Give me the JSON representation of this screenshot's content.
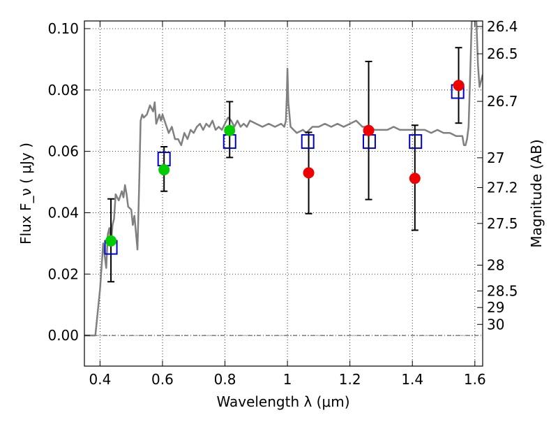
{
  "chart_data": {
    "type": "scatter",
    "title": "",
    "xlabel": "Wavelength  λ (μm)",
    "ylabel": "Flux  F_ν  ( μJy )",
    "ylabel_right": "Magnitude (AB)",
    "xlim": [
      0.35,
      1.625
    ],
    "ylim": [
      -0.01,
      0.1025
    ],
    "x_ticks": [
      0.4,
      0.6,
      0.8,
      1.0,
      1.2,
      1.4,
      1.6
    ],
    "x_tick_labels": [
      "0.4",
      "0.6",
      "0.8",
      "1",
      "1.2",
      "1.4",
      "1.6"
    ],
    "y_ticks": [
      0.0,
      0.02,
      0.04,
      0.06,
      0.08,
      0.1
    ],
    "y_tick_labels": [
      "0.00",
      "0.02",
      "0.04",
      "0.06",
      "0.08",
      "0.10"
    ],
    "right_axis_ticks": [
      {
        "label": "26.4",
        "flux": 0.1007
      },
      {
        "label": "26.5",
        "flux": 0.0918
      },
      {
        "label": "26.7",
        "flux": 0.0763
      },
      {
        "label": "27",
        "flux": 0.0579
      },
      {
        "label": "27.2",
        "flux": 0.0482
      },
      {
        "label": "27.5",
        "flux": 0.0365
      },
      {
        "label": "28",
        "flux": 0.0229
      },
      {
        "label": "28.5",
        "flux": 0.0145
      },
      {
        "label": "29",
        "flux": 0.0091
      },
      {
        "label": "30",
        "flux": 0.0036
      }
    ],
    "grid": true,
    "series": [
      {
        "name": "model SED",
        "kind": "line",
        "color": "#808080",
        "x": [
          0.35,
          0.385,
          0.4,
          0.41,
          0.42,
          0.425,
          0.43,
          0.435,
          0.44,
          0.445,
          0.45,
          0.46,
          0.47,
          0.475,
          0.48,
          0.485,
          0.49,
          0.5,
          0.505,
          0.51,
          0.52,
          0.525,
          0.53,
          0.535,
          0.54,
          0.55,
          0.56,
          0.57,
          0.575,
          0.58,
          0.59,
          0.595,
          0.6,
          0.61,
          0.62,
          0.63,
          0.64,
          0.65,
          0.66,
          0.67,
          0.68,
          0.69,
          0.7,
          0.71,
          0.72,
          0.73,
          0.74,
          0.75,
          0.76,
          0.77,
          0.78,
          0.79,
          0.8,
          0.81,
          0.82,
          0.83,
          0.84,
          0.85,
          0.86,
          0.87,
          0.88,
          0.9,
          0.92,
          0.94,
          0.96,
          0.98,
          0.99,
          0.995,
          0.998,
          1.0,
          1.003,
          1.01,
          1.03,
          1.05,
          1.06,
          1.08,
          1.1,
          1.12,
          1.14,
          1.16,
          1.18,
          1.2,
          1.22,
          1.24,
          1.26,
          1.28,
          1.3,
          1.32,
          1.34,
          1.36,
          1.38,
          1.4,
          1.42,
          1.44,
          1.46,
          1.48,
          1.5,
          1.52,
          1.54,
          1.56,
          1.565,
          1.57,
          1.575,
          1.58,
          1.585,
          1.59,
          1.6,
          1.605,
          1.61,
          1.615,
          1.62,
          1.625
        ],
        "y": [
          0.0,
          0.0,
          0.015,
          0.03,
          0.022,
          0.033,
          0.035,
          0.029,
          0.036,
          0.038,
          0.046,
          0.044,
          0.047,
          0.045,
          0.049,
          0.046,
          0.042,
          0.041,
          0.036,
          0.039,
          0.028,
          0.048,
          0.07,
          0.072,
          0.071,
          0.072,
          0.075,
          0.073,
          0.076,
          0.069,
          0.072,
          0.07,
          0.072,
          0.069,
          0.066,
          0.068,
          0.064,
          0.064,
          0.062,
          0.066,
          0.064,
          0.067,
          0.066,
          0.068,
          0.069,
          0.067,
          0.069,
          0.068,
          0.07,
          0.067,
          0.068,
          0.067,
          0.069,
          0.071,
          0.07,
          0.068,
          0.07,
          0.068,
          0.069,
          0.068,
          0.07,
          0.069,
          0.068,
          0.069,
          0.068,
          0.069,
          0.068,
          0.07,
          0.078,
          0.087,
          0.076,
          0.068,
          0.066,
          0.067,
          0.066,
          0.068,
          0.068,
          0.069,
          0.068,
          0.069,
          0.068,
          0.069,
          0.07,
          0.068,
          0.068,
          0.067,
          0.067,
          0.067,
          0.068,
          0.067,
          0.067,
          0.067,
          0.067,
          0.067,
          0.066,
          0.067,
          0.066,
          0.066,
          0.065,
          0.065,
          0.062,
          0.062,
          0.064,
          0.068,
          0.085,
          0.1025,
          0.1025,
          0.1025,
          0.088,
          0.081,
          0.083,
          0.085
        ]
      },
      {
        "name": "model photometry",
        "kind": "open-square",
        "color": "#0000cc",
        "x": [
          0.435,
          0.605,
          0.815,
          1.065,
          1.262,
          1.41,
          1.545
        ],
        "y": [
          0.0287,
          0.0575,
          0.0632,
          0.0632,
          0.0632,
          0.0632,
          0.0795
        ]
      },
      {
        "name": "detections",
        "kind": "filled-circle",
        "color": "#00cc00",
        "x": [
          0.435,
          0.605,
          0.815
        ],
        "y": [
          0.0308,
          0.054,
          0.0668
        ]
      },
      {
        "name": "upper limits / non-detections",
        "kind": "filled-circle",
        "color": "#ee0000",
        "x": [
          1.068,
          1.26,
          1.408,
          1.548
        ],
        "y": [
          0.053,
          0.0668,
          0.0512,
          0.0815
        ]
      }
    ],
    "error_bars": [
      {
        "x": 0.435,
        "low": 0.0175,
        "high": 0.0445
      },
      {
        "x": 0.605,
        "low": 0.047,
        "high": 0.0615
      },
      {
        "x": 0.815,
        "low": 0.058,
        "high": 0.0762
      },
      {
        "x": 1.068,
        "low": 0.0397,
        "high": 0.0662
      },
      {
        "x": 1.26,
        "low": 0.0443,
        "high": 0.0893
      },
      {
        "x": 1.408,
        "low": 0.0343,
        "high": 0.0685
      },
      {
        "x": 1.548,
        "low": 0.0692,
        "high": 0.0938
      }
    ]
  }
}
